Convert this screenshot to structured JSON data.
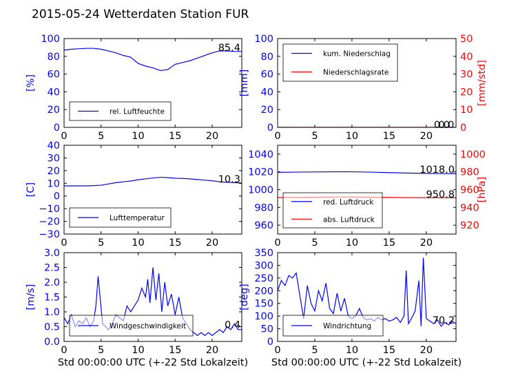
{
  "figure": {
    "title": "2015-05-24 Wetterdaten Station FUR",
    "xlabel": "Std 00:00:00 UTC (+-22 Std Lokalzeit)"
  },
  "colors": {
    "blue": "#0000ff",
    "red": "#ff0000",
    "axis": "#000000"
  },
  "chart_data": [
    {
      "id": "humidity",
      "type": "line",
      "xlim": [
        0,
        24
      ],
      "x_ticks": [
        "0",
        "5",
        "10",
        "15",
        "20"
      ],
      "ylim": [
        0,
        100
      ],
      "y_ticks": [
        "0",
        "20",
        "40",
        "60",
        "80",
        "100"
      ],
      "ylabel": "[%]",
      "legend_loc": "lower-left",
      "annotation": "85.4",
      "series": [
        {
          "name": "rel. Luftfeuchte",
          "color": "#0000ff",
          "x": [
            0,
            1,
            2,
            3,
            4,
            5,
            6,
            7,
            8,
            9,
            10,
            11,
            12,
            13,
            14,
            15,
            16,
            17,
            18,
            19,
            20,
            21,
            22,
            23,
            24
          ],
          "y": [
            87,
            88,
            88.5,
            89,
            89,
            88,
            86,
            84,
            81,
            79,
            72,
            69,
            67,
            64,
            65,
            71,
            73,
            75,
            78,
            81,
            84,
            86,
            86,
            85.5,
            85.4
          ]
        }
      ]
    },
    {
      "id": "precipitation",
      "type": "line",
      "xlim": [
        0,
        24
      ],
      "x_ticks": [
        "0",
        "5",
        "10",
        "15",
        "20"
      ],
      "ylim": [
        0,
        100
      ],
      "y_ticks": [
        "0",
        "20",
        "40",
        "60",
        "80",
        "100"
      ],
      "ylabel": "[mm]",
      "y2lim": [
        0,
        50
      ],
      "y2_ticks": [
        "0",
        "10",
        "20",
        "30",
        "40",
        "50"
      ],
      "y2label": "[mm/std]",
      "legend_loc": "upper-left",
      "annotations": [
        "0.0",
        "0.0"
      ],
      "series": [
        {
          "name": "kum. Niederschlag",
          "color": "#0000ff",
          "x": [
            0,
            24
          ],
          "y": [
            0,
            0
          ]
        },
        {
          "name": "Niederschlagsrate",
          "color": "#ff0000",
          "axis": "right",
          "x": [
            0,
            24
          ],
          "y": [
            0,
            0
          ]
        }
      ]
    },
    {
      "id": "temperature",
      "type": "line",
      "xlim": [
        0,
        24
      ],
      "x_ticks": [
        "0",
        "5",
        "10",
        "15",
        "20"
      ],
      "ylim": [
        -30,
        40
      ],
      "y_ticks": [
        "−30",
        "−20",
        "−10",
        "0",
        "10",
        "20",
        "30",
        "40"
      ],
      "ylabel": "[C]",
      "legend_loc": "lower-left",
      "annotation": "10.3",
      "series": [
        {
          "name": "Lufttemperatur",
          "color": "#0000ff",
          "x": [
            0,
            1,
            2,
            3,
            4,
            5,
            6,
            7,
            8,
            9,
            10,
            11,
            12,
            13,
            14,
            15,
            16,
            17,
            18,
            19,
            20,
            21,
            22,
            23,
            24
          ],
          "y": [
            8,
            8,
            8,
            8,
            8.2,
            8.5,
            9.5,
            10.5,
            11.2,
            11.8,
            12.8,
            13.5,
            14.2,
            14.8,
            14.5,
            14,
            13.8,
            13.5,
            13,
            12.5,
            12,
            11.2,
            10.8,
            10.5,
            10.3
          ]
        }
      ]
    },
    {
      "id": "pressure",
      "type": "line",
      "xlim": [
        0,
        24
      ],
      "x_ticks": [
        "0",
        "5",
        "10",
        "15",
        "20"
      ],
      "ylim": [
        950,
        1050
      ],
      "y_ticks": [
        "960",
        "980",
        "1000",
        "1020",
        "1040"
      ],
      "y2lim": [
        910,
        1010
      ],
      "y2_ticks": [
        "920",
        "940",
        "960",
        "980",
        "1000"
      ],
      "y2label": "[hPa]",
      "legend_loc": "lower-left",
      "annotations": [
        "1018.0",
        "950.8"
      ],
      "series": [
        {
          "name": "red. Luftdruck",
          "color": "#0000ff",
          "x": [
            0,
            3,
            6,
            9,
            12,
            15,
            18,
            21,
            24
          ],
          "y": [
            1019.5,
            1019.8,
            1020,
            1020.2,
            1019.8,
            1019.2,
            1018.6,
            1018.2,
            1018.0
          ]
        },
        {
          "name": "abs. Luftdruck",
          "color": "#ff0000",
          "axis": "right",
          "x": [
            0,
            3,
            6,
            9,
            12,
            15,
            18,
            21,
            24
          ],
          "y": [
            951.2,
            951.3,
            951.6,
            951.8,
            951.6,
            951.3,
            951.0,
            950.9,
            950.8
          ]
        }
      ]
    },
    {
      "id": "windspeed",
      "type": "line",
      "xlim": [
        0,
        24
      ],
      "x_ticks": [
        "0",
        "5",
        "10",
        "15",
        "20"
      ],
      "ylim": [
        0,
        3.0
      ],
      "y_ticks": [
        "0.0",
        "0.5",
        "1.0",
        "1.5",
        "2.0",
        "2.5",
        "3.0"
      ],
      "ylabel": "[m/s]",
      "legend_loc": "lower-left",
      "annotation": "0.4",
      "series": [
        {
          "name": "Windgeschwindigkeit",
          "color": "#0000ff",
          "x": [
            0,
            0.5,
            1,
            1.5,
            2,
            2.5,
            3,
            3.5,
            4,
            4.3,
            4.6,
            4.9,
            5.2,
            5.6,
            6,
            6.5,
            7,
            7.5,
            8,
            8.5,
            9,
            9.5,
            10,
            10.5,
            11,
            11.3,
            11.6,
            12,
            12.4,
            12.8,
            13.2,
            13.6,
            14,
            14.5,
            15,
            15.5,
            16,
            16.5,
            17,
            17.5,
            18,
            18.5,
            19,
            19.5,
            20,
            20.5,
            21,
            21.5,
            22,
            22.5,
            23,
            23.5,
            24
          ],
          "y": [
            0.8,
            0.6,
            0.9,
            0.5,
            0.7,
            0.6,
            0.8,
            0.5,
            0.7,
            1.2,
            2.2,
            1.4,
            0.6,
            0.5,
            0.4,
            0.6,
            0.9,
            0.8,
            0.7,
            1.2,
            1.0,
            1.2,
            1.4,
            1.8,
            1.5,
            2.1,
            1.3,
            2.5,
            1.4,
            2.3,
            1.0,
            2.0,
            1.2,
            1.6,
            0.9,
            1.5,
            0.8,
            0.6,
            0.4,
            0.3,
            0.2,
            0.3,
            0.2,
            0.3,
            0.2,
            0.3,
            0.4,
            0.3,
            0.5,
            0.4,
            0.6,
            0.4,
            0.4
          ]
        }
      ]
    },
    {
      "id": "winddirection",
      "type": "line",
      "xlim": [
        0,
        24
      ],
      "x_ticks": [
        "0",
        "5",
        "10",
        "15",
        "20"
      ],
      "ylim": [
        0,
        350
      ],
      "y_ticks": [
        "0",
        "50",
        "100",
        "150",
        "200",
        "250",
        "300",
        "350"
      ],
      "ylabel": "[deg]",
      "legend_loc": "lower-left",
      "annotation": "70.2",
      "series": [
        {
          "name": "Windrichtung",
          "color": "#0000ff",
          "x": [
            0,
            0.5,
            1,
            1.5,
            2,
            2.5,
            3,
            3.5,
            4,
            4.5,
            5,
            5.5,
            6,
            6.5,
            7,
            7.5,
            8,
            8.5,
            9,
            9.5,
            10,
            10.5,
            11,
            11.5,
            12,
            12.5,
            13,
            13.5,
            14,
            14.5,
            15,
            15.5,
            16,
            16.5,
            17,
            17.3,
            17.6,
            18,
            18.5,
            19,
            19.3,
            19.6,
            20,
            20.5,
            21,
            21.5,
            22,
            22.5,
            23,
            23.5,
            24
          ],
          "y": [
            200,
            240,
            220,
            260,
            250,
            270,
            180,
            90,
            220,
            150,
            120,
            200,
            160,
            230,
            130,
            110,
            190,
            120,
            170,
            100,
            90,
            100,
            130,
            95,
            85,
            90,
            80,
            95,
            85,
            90,
            80,
            85,
            95,
            75,
            100,
            280,
            70,
            90,
            120,
            240,
            60,
            330,
            90,
            80,
            70,
            85,
            60,
            75,
            65,
            80,
            70.2
          ]
        }
      ]
    }
  ]
}
